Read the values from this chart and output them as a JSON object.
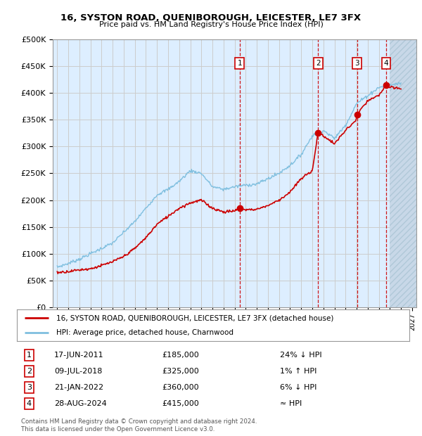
{
  "title": "16, SYSTON ROAD, QUENIBOROUGH, LEICESTER, LE7 3FX",
  "subtitle": "Price paid vs. HM Land Registry's House Price Index (HPI)",
  "ylim": [
    0,
    500000
  ],
  "yticks": [
    0,
    50000,
    100000,
    150000,
    200000,
    250000,
    300000,
    350000,
    400000,
    450000,
    500000
  ],
  "ytick_labels": [
    "£0",
    "£50K",
    "£100K",
    "£150K",
    "£200K",
    "£250K",
    "£300K",
    "£350K",
    "£400K",
    "£450K",
    "£500K"
  ],
  "xlim_start": 1994.6,
  "xlim_end": 2027.4,
  "xticks": [
    1995,
    1996,
    1997,
    1998,
    1999,
    2000,
    2001,
    2002,
    2003,
    2004,
    2005,
    2006,
    2007,
    2008,
    2009,
    2010,
    2011,
    2012,
    2013,
    2014,
    2015,
    2016,
    2017,
    2018,
    2019,
    2020,
    2021,
    2022,
    2023,
    2024,
    2025,
    2026,
    2027
  ],
  "hpi_color": "#7fbfdf",
  "price_color": "#cc0000",
  "grid_color": "#cccccc",
  "bg_color": "#ddeeff",
  "hatch_start": 2025.0,
  "sale_points": [
    {
      "date_num": 2011.46,
      "price": 185000,
      "label": "1"
    },
    {
      "date_num": 2018.52,
      "price": 325000,
      "label": "2"
    },
    {
      "date_num": 2022.05,
      "price": 360000,
      "label": "3"
    },
    {
      "date_num": 2024.66,
      "price": 415000,
      "label": "4"
    }
  ],
  "legend_entries": [
    "16, SYSTON ROAD, QUENIBOROUGH, LEICESTER, LE7 3FX (detached house)",
    "HPI: Average price, detached house, Charnwood"
  ],
  "table_rows": [
    {
      "num": "1",
      "date": "17-JUN-2011",
      "price": "£185,000",
      "hpi": "24% ↓ HPI"
    },
    {
      "num": "2",
      "date": "09-JUL-2018",
      "price": "£325,000",
      "hpi": "1% ↑ HPI"
    },
    {
      "num": "3",
      "date": "21-JAN-2022",
      "price": "£360,000",
      "hpi": "6% ↓ HPI"
    },
    {
      "num": "4",
      "date": "28-AUG-2024",
      "price": "£415,000",
      "hpi": "≈ HPI"
    }
  ],
  "footnote": "Contains HM Land Registry data © Crown copyright and database right 2024.\nThis data is licensed under the Open Government Licence v3.0.",
  "hpi_knots_x": [
    1995,
    1996,
    1997,
    1998,
    1999,
    2000,
    2001,
    2002,
    2003,
    2004,
    2005,
    2006,
    2007,
    2008,
    2009,
    2010,
    2011,
    2012,
    2013,
    2014,
    2015,
    2016,
    2017,
    2018,
    2019,
    2020,
    2021,
    2022,
    2023,
    2024,
    2025,
    2026
  ],
  "hpi_knots_y": [
    75000,
    82000,
    90000,
    100000,
    110000,
    120000,
    140000,
    160000,
    185000,
    210000,
    220000,
    235000,
    255000,
    250000,
    225000,
    220000,
    225000,
    228000,
    230000,
    240000,
    250000,
    265000,
    285000,
    320000,
    330000,
    315000,
    340000,
    380000,
    395000,
    410000,
    415000,
    418000
  ],
  "price_knots_x": [
    1995,
    1996,
    1997,
    1998,
    1999,
    2000,
    2001,
    2002,
    2003,
    2004,
    2005,
    2006,
    2007,
    2008,
    2009,
    2010,
    2011,
    2011.46,
    2012,
    2013,
    2014,
    2015,
    2016,
    2017,
    2018,
    2018.52,
    2019,
    2020,
    2021,
    2022,
    2022.05,
    2023,
    2024,
    2024.66,
    2025,
    2026
  ],
  "price_knots_y": [
    65000,
    67000,
    70000,
    72000,
    78000,
    85000,
    95000,
    110000,
    130000,
    155000,
    170000,
    185000,
    195000,
    200000,
    185000,
    178000,
    180000,
    185000,
    182000,
    183000,
    190000,
    200000,
    215000,
    240000,
    255000,
    325000,
    320000,
    305000,
    330000,
    350000,
    360000,
    385000,
    395000,
    415000,
    410000,
    408000
  ]
}
